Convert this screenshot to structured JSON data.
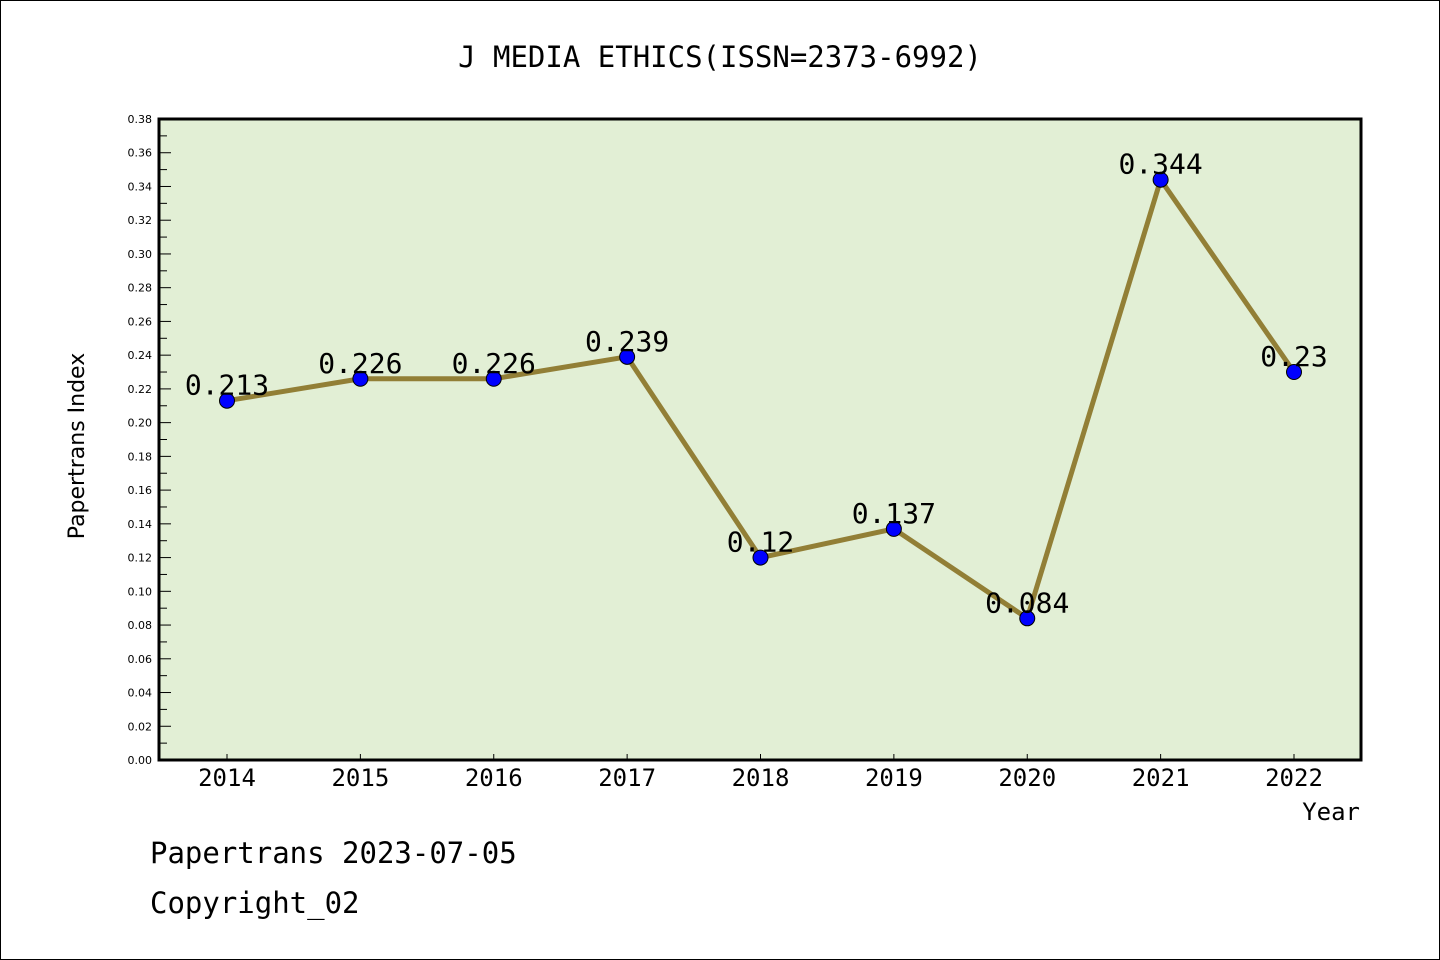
{
  "chart_data": {
    "type": "line",
    "title": "J MEDIA ETHICS(ISSN=2373-6992)",
    "xlabel": "Year",
    "ylabel": "Papertrans Index",
    "categories": [
      "2014",
      "2015",
      "2016",
      "2017",
      "2018",
      "2019",
      "2020",
      "2021",
      "2022"
    ],
    "series": [
      {
        "name": "Papertrans Index",
        "values": [
          0.213,
          0.226,
          0.226,
          0.239,
          0.12,
          0.137,
          0.084,
          0.344,
          0.23
        ],
        "labels": [
          "0.213",
          "0.226",
          "0.226",
          "0.239",
          "0.12",
          "0.137",
          "0.084",
          "0.344",
          "0.23"
        ]
      }
    ],
    "ylim": [
      0,
      0.38
    ],
    "yticks": [
      "0.00",
      "0.02",
      "0.04",
      "0.06",
      "0.08",
      "0.10",
      "0.12",
      "0.14",
      "0.16",
      "0.18",
      "0.20",
      "0.22",
      "0.24",
      "0.26",
      "0.28",
      "0.30",
      "0.32",
      "0.34",
      "0.36",
      "0.38"
    ],
    "grid": false,
    "legend": "none",
    "colors": {
      "plot_background": "#e2efd5",
      "line": "#927f36",
      "marker": "#0000ff",
      "marker_edge": "#000000",
      "axis": "#000000"
    }
  },
  "footer": {
    "line1": "Papertrans 2023-07-05",
    "line2": "Copyright_02"
  }
}
